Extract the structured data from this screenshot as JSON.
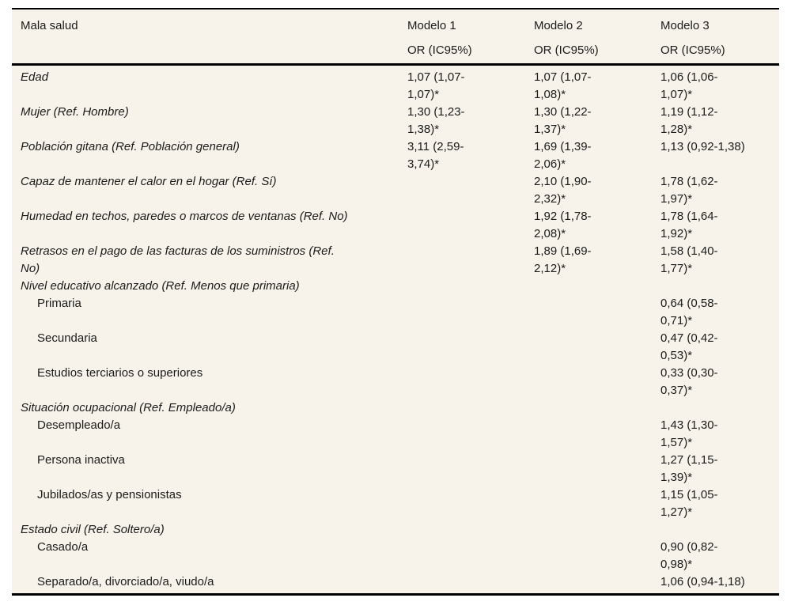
{
  "table": {
    "label_column": "Mala salud",
    "columns": [
      {
        "label": "Modelo 1",
        "sub": "OR (IC95%)"
      },
      {
        "label": "Modelo 2",
        "sub": "OR (IC95%)"
      },
      {
        "label": "Modelo 3",
        "sub": "OR (IC95%)"
      }
    ],
    "rows": [
      {
        "label": "Edad",
        "italic": true,
        "indent": false,
        "m1": "1,07 (1,07-\n1,07)*",
        "m2": "1,07 (1,07-\n1,08)*",
        "m3": "1,06 (1,06-\n1,07)*"
      },
      {
        "label": "Mujer (Ref. Hombre)",
        "italic": true,
        "indent": false,
        "m1": "1,30 (1,23-\n1,38)*",
        "m2": "1,30 (1,22-\n1,37)*",
        "m3": "1,19 (1,12-\n1,28)*"
      },
      {
        "label": "Población gitana (Ref. Población general)",
        "italic": true,
        "indent": false,
        "m1": "3,11 (2,59-\n3,74)*",
        "m2": "1,69 (1,39-\n2,06)*",
        "m3": "1,13 (0,92-1,38)"
      },
      {
        "label": "Capaz de mantener el calor en el hogar (Ref. Sí)",
        "italic": true,
        "indent": false,
        "m1": "",
        "m2": "2,10 (1,90-\n2,32)*",
        "m3": "1,78 (1,62-\n1,97)*"
      },
      {
        "label": "Humedad en techos, paredes o marcos de ventanas (Ref. No)",
        "italic": true,
        "indent": false,
        "m1": "",
        "m2": "1,92 (1,78-\n2,08)*",
        "m3": "1,78 (1,64-\n1,92)*"
      },
      {
        "label": "Retrasos en el pago de las facturas de los suministros (Ref.\nNo)",
        "italic": true,
        "indent": false,
        "m1": "",
        "m2": "1,89 (1,69-\n2,12)*",
        "m3": "1,58 (1,40-\n1,77)*"
      },
      {
        "label": "Nivel educativo alcanzado (Ref. Menos que primaria)",
        "italic": true,
        "indent": false,
        "m1": "",
        "m2": "",
        "m3": ""
      },
      {
        "label": "Primaria",
        "italic": false,
        "indent": true,
        "m1": "",
        "m2": "",
        "m3": "0,64 (0,58-\n0,71)*"
      },
      {
        "label": "Secundaria",
        "italic": false,
        "indent": true,
        "m1": "",
        "m2": "",
        "m3": "0,47 (0,42-\n0,53)*"
      },
      {
        "label": "Estudios terciarios o superiores",
        "italic": false,
        "indent": true,
        "m1": "",
        "m2": "",
        "m3": "0,33 (0,30-\n0,37)*"
      },
      {
        "label": "Situación ocupacional (Ref. Empleado/a)",
        "italic": true,
        "indent": false,
        "m1": "",
        "m2": "",
        "m3": ""
      },
      {
        "label": "Desempleado/a",
        "italic": false,
        "indent": true,
        "m1": "",
        "m2": "",
        "m3": "1,43 (1,30-\n1,57)*"
      },
      {
        "label": "Persona inactiva",
        "italic": false,
        "indent": true,
        "m1": "",
        "m2": "",
        "m3": "1,27 (1,15-\n1,39)*"
      },
      {
        "label": "Jubilados/as y pensionistas",
        "italic": false,
        "indent": true,
        "m1": "",
        "m2": "",
        "m3": "1,15 (1,05-\n1,27)*"
      },
      {
        "label": "Estado civil (Ref. Soltero/a)",
        "italic": true,
        "indent": false,
        "m1": "",
        "m2": "",
        "m3": ""
      },
      {
        "label": "Casado/a",
        "italic": false,
        "indent": true,
        "m1": "",
        "m2": "",
        "m3": "0,90 (0,82-\n0,98)*"
      },
      {
        "label": "Separado/a, divorciado/a, viudo/a",
        "italic": false,
        "indent": true,
        "m1": "",
        "m2": "",
        "m3": "1,06 (0,94-1,18)"
      }
    ]
  },
  "colors": {
    "background": "#f7f3ea",
    "text": "#1b1b1b",
    "rule": "#000000",
    "page": "#ffffff"
  }
}
